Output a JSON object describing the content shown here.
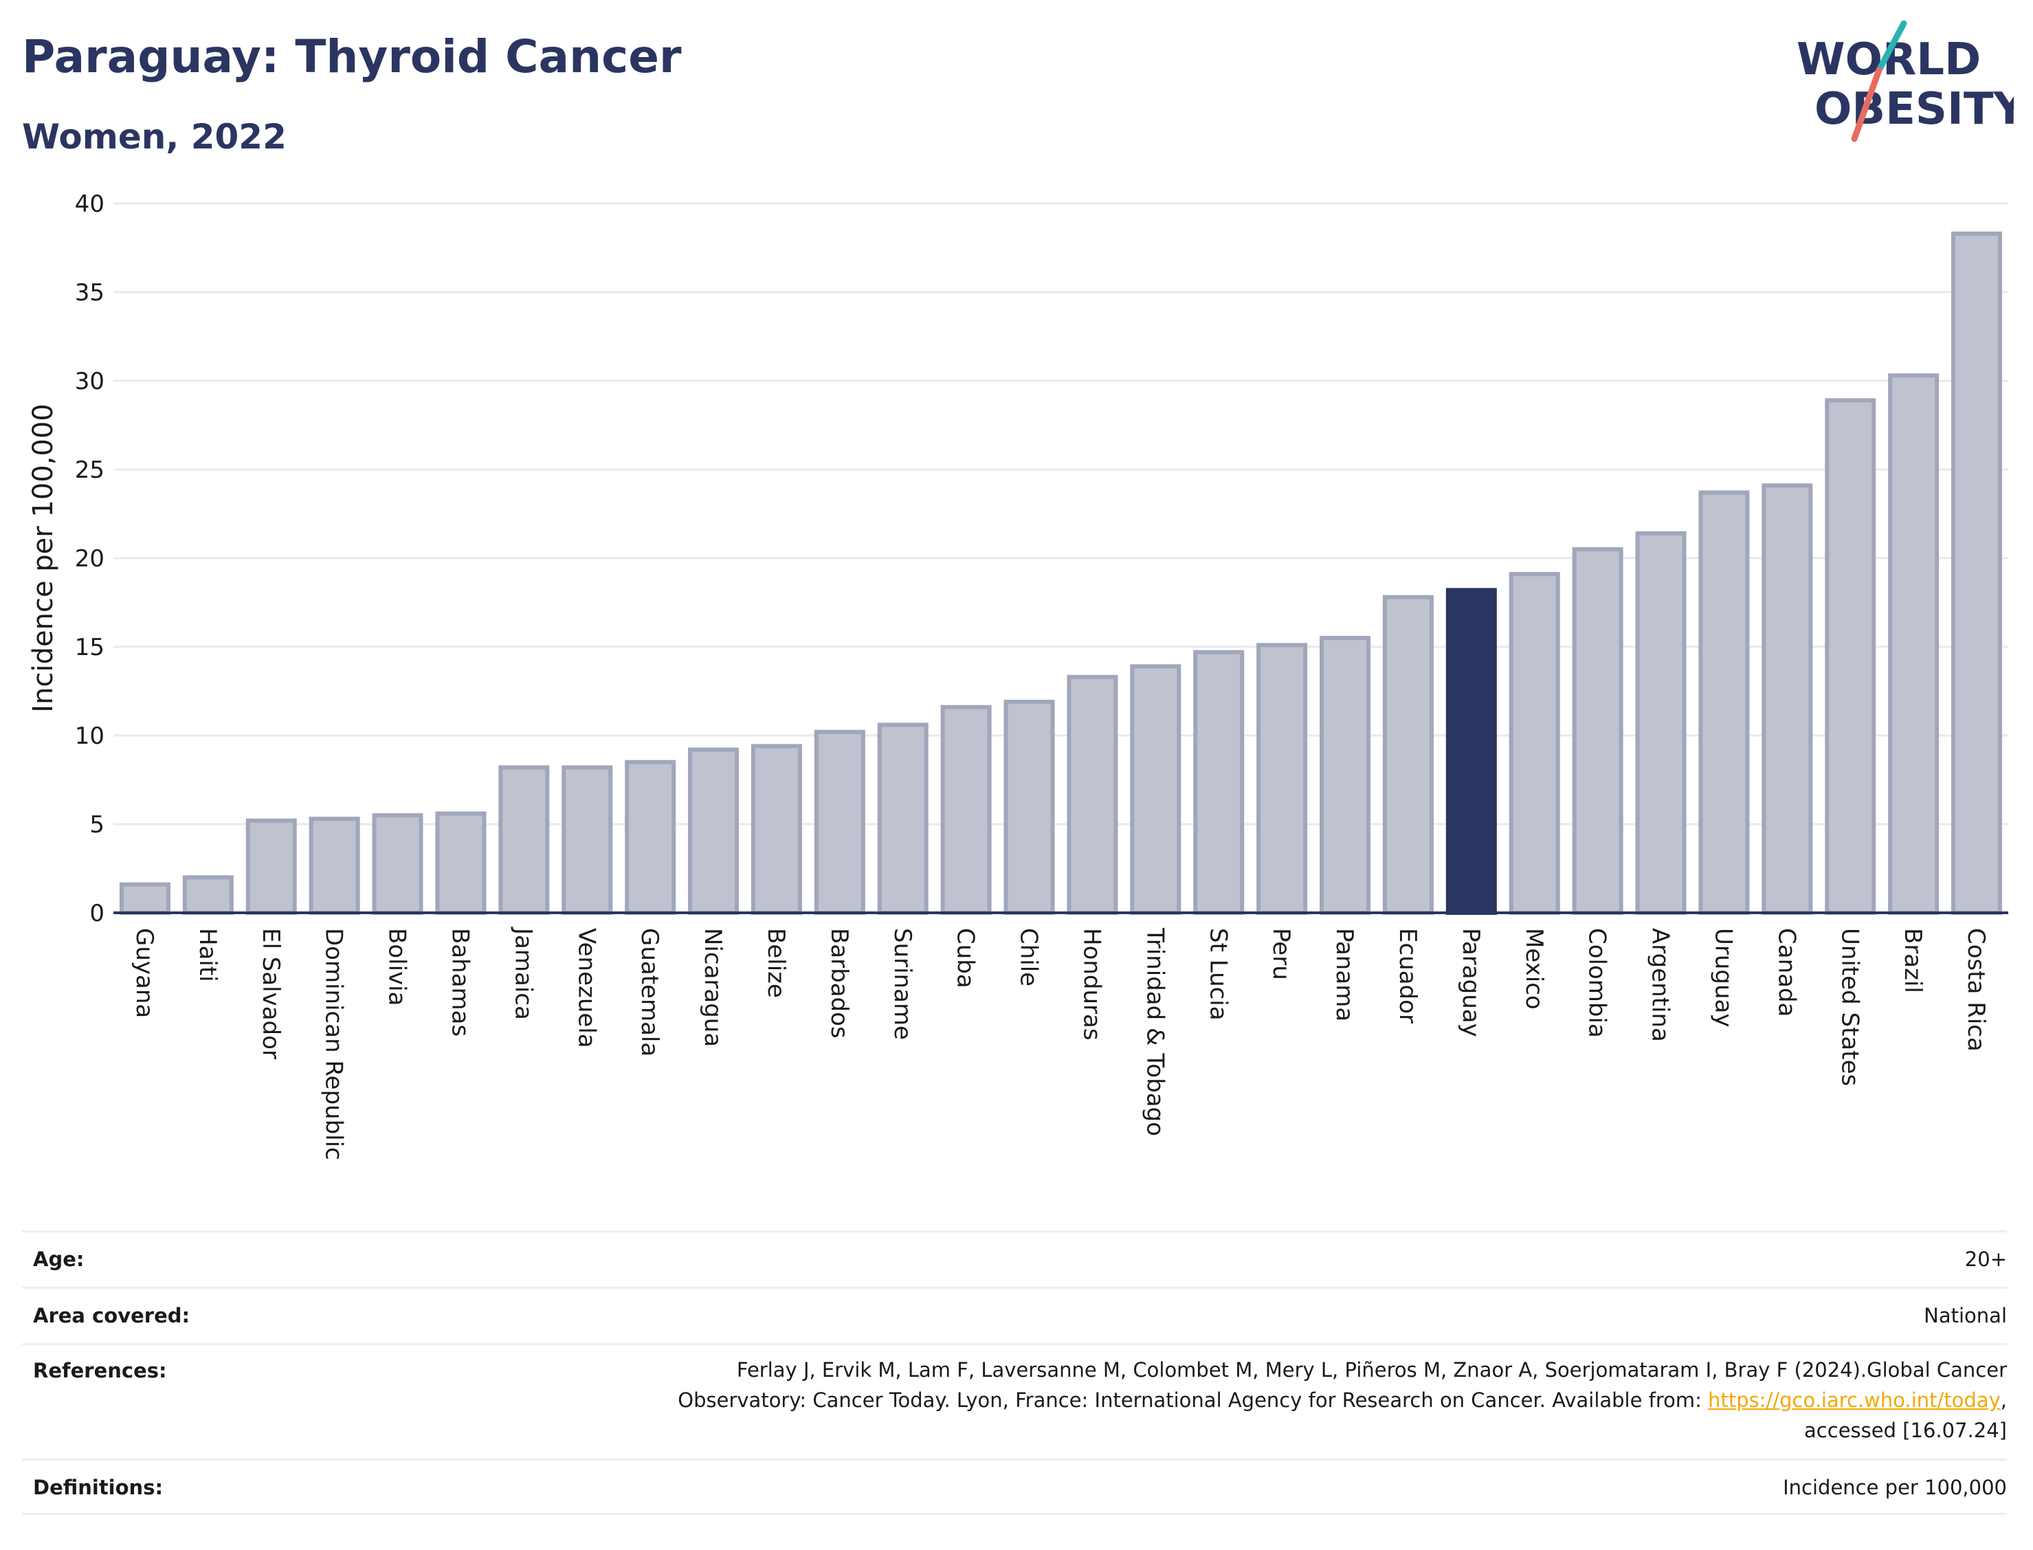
{
  "title": "Paraguay: Thyroid Cancer",
  "subtitle": "Women, 2022",
  "logo": {
    "line1": "WORLD",
    "line2": "OBESITY"
  },
  "colors": {
    "title": "#2b3561",
    "bar": "#bfc2cf",
    "bar_border": "#a1a6bb",
    "highlight": "#2b3561",
    "grid": "#e9e9ee",
    "axis": "#2b3561",
    "link": "#f2a900",
    "logo_teal": "#2bb3b1",
    "logo_red": "#e86b5e"
  },
  "chart_data": {
    "type": "bar",
    "ylabel": "Incidence per 100,000",
    "xlabel": "",
    "ylim": [
      0,
      40
    ],
    "yticks": [
      0,
      5,
      10,
      15,
      20,
      25,
      30,
      35,
      40
    ],
    "grid": true,
    "highlight": "Paraguay",
    "categories": [
      "Guyana",
      "Haiti",
      "El Salvador",
      "Dominican Republic",
      "Bolivia",
      "Bahamas",
      "Jamaica",
      "Venezuela",
      "Guatemala",
      "Nicaragua",
      "Belize",
      "Barbados",
      "Suriname",
      "Cuba",
      "Chile",
      "Honduras",
      "Trinidad & Tobago",
      "St Lucia",
      "Peru",
      "Panama",
      "Ecuador",
      "Paraguay",
      "Mexico",
      "Colombia",
      "Argentina",
      "Uruguay",
      "Canada",
      "United States",
      "Brazil",
      "Costa Rica"
    ],
    "values": [
      1.6,
      2.0,
      5.2,
      5.3,
      5.5,
      5.6,
      8.2,
      8.2,
      8.5,
      9.2,
      9.4,
      10.2,
      10.6,
      11.6,
      11.9,
      13.3,
      13.9,
      14.7,
      15.1,
      15.5,
      17.8,
      18.2,
      19.1,
      20.5,
      21.4,
      23.7,
      24.1,
      28.9,
      30.3,
      38.3
    ]
  },
  "meta": {
    "age_label": "Age:",
    "age_value": "20+",
    "area_label": "Area covered:",
    "area_value": "National",
    "references_label": "References:",
    "references_text_before": "Ferlay J, Ervik M, Lam F, Laversanne M, Colombet M, Mery L, Piñeros M, Znaor A, Soerjomataram I, Bray F (2024).Global Cancer Observatory: Cancer Today. Lyon, France: International Agency for Research on Cancer. Available from: ",
    "references_link": "https://gco.iarc.who.int/today",
    "references_text_after": ", accessed [16.07.24]",
    "definitions_label": "Definitions:",
    "definitions_value": "Incidence per 100,000"
  }
}
